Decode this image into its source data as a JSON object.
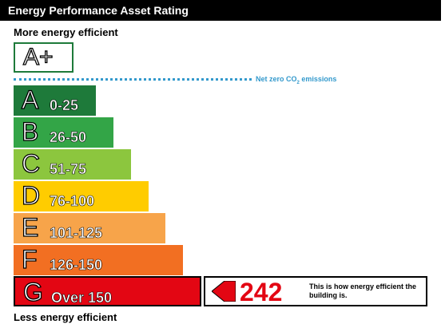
{
  "header": {
    "title": "Energy Performance Asset Rating"
  },
  "labels": {
    "top": "More energy efficient",
    "bottom": "Less energy efficient",
    "netzero_prefix": "Net zero CO",
    "netzero_sub": "2",
    "netzero_suffix": " emissions"
  },
  "chart_data": {
    "type": "bar",
    "title": "Energy Performance Asset Rating",
    "aplus": {
      "label": "A+",
      "color": "#1e7a3a"
    },
    "bands": [
      {
        "letter": "A",
        "range": "0-25",
        "color": "#1e7a3a"
      },
      {
        "letter": "B",
        "range": "26-50",
        "color": "#33a547"
      },
      {
        "letter": "C",
        "range": "51-75",
        "color": "#8cc63e"
      },
      {
        "letter": "D",
        "range": "76-100",
        "color": "#ffcc00"
      },
      {
        "letter": "E",
        "range": "101-125",
        "color": "#f7a44a"
      },
      {
        "letter": "F",
        "range": "126-150",
        "color": "#f26f22"
      },
      {
        "letter": "G",
        "range": "Over 150",
        "color": "#e30613"
      }
    ],
    "rating": {
      "value": "242",
      "band": "G",
      "color": "#e30613",
      "description": "This is how energy efficient the building is."
    }
  }
}
